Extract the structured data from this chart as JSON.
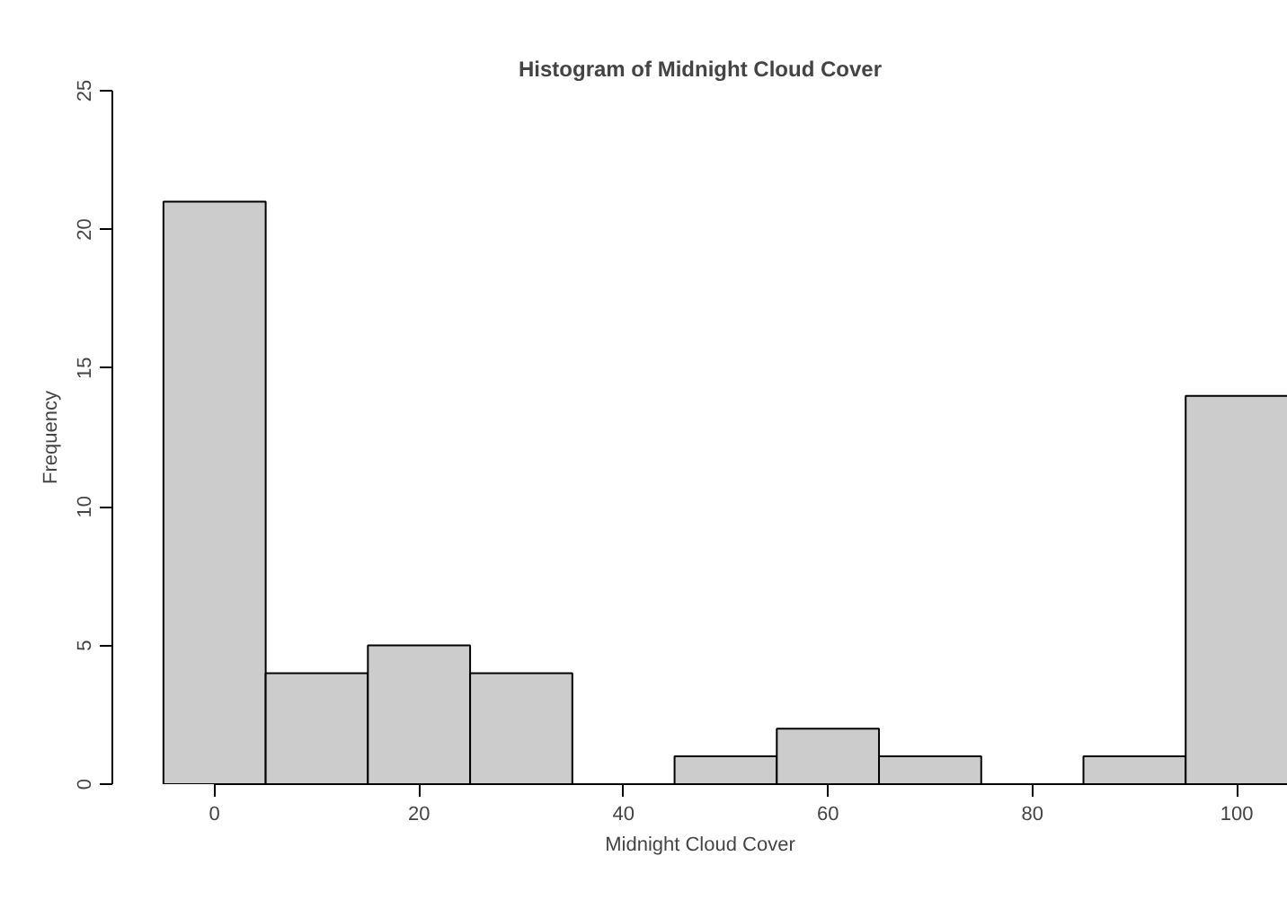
{
  "chart_data": {
    "type": "histogram",
    "title": "Histogram of Midnight Cloud Cover",
    "xlabel": "Midnight Cloud Cover",
    "ylabel": "Frequency",
    "bins": [
      -5,
      5,
      15,
      25,
      35,
      45,
      55,
      65,
      75,
      85,
      95,
      105
    ],
    "values": [
      21,
      4,
      5,
      4,
      0,
      1,
      2,
      1,
      0,
      1,
      14
    ],
    "color": "#cccccc",
    "xlim": [
      -10,
      105
    ],
    "ylim": [
      0,
      25
    ],
    "xticks": [
      0,
      20,
      40,
      60,
      80,
      100
    ],
    "yticks": [
      0,
      5,
      10,
      15,
      20,
      25
    ],
    "grid": false
  }
}
